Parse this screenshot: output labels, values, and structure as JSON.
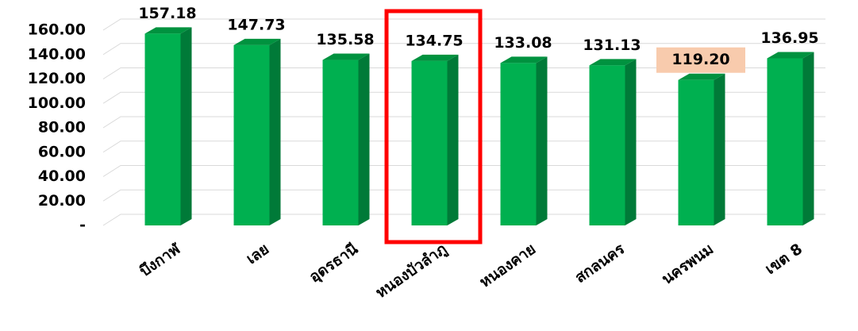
{
  "chart_data": {
    "type": "bar3d",
    "categories": [
      "บึงกาฬ",
      "เลย",
      "อุดรธานี",
      "หนองบัวลำภู",
      "หนองคาย",
      "สกลนคร",
      "นครพนม",
      "เขต 8"
    ],
    "values": [
      157.18,
      147.73,
      135.58,
      134.75,
      133.08,
      131.13,
      119.2,
      136.95
    ],
    "value_labels": [
      "157.18",
      "147.73",
      "135.58",
      "134.75",
      "133.08",
      "131.13",
      "119.20",
      "136.95"
    ],
    "color": "#00b050",
    "ylim": [
      0,
      160
    ],
    "yticks": [
      {
        "value": 0,
        "label": "-"
      },
      {
        "value": 20,
        "label": "20.00"
      },
      {
        "value": 40,
        "label": "40.00"
      },
      {
        "value": 60,
        "label": "60.00"
      },
      {
        "value": 80,
        "label": "80.00"
      },
      {
        "value": 100,
        "label": "100.00"
      },
      {
        "value": 120,
        "label": "120.00"
      },
      {
        "value": 140,
        "label": "140.00"
      },
      {
        "value": 160,
        "label": "160.00"
      }
    ],
    "grid": true
  }
}
